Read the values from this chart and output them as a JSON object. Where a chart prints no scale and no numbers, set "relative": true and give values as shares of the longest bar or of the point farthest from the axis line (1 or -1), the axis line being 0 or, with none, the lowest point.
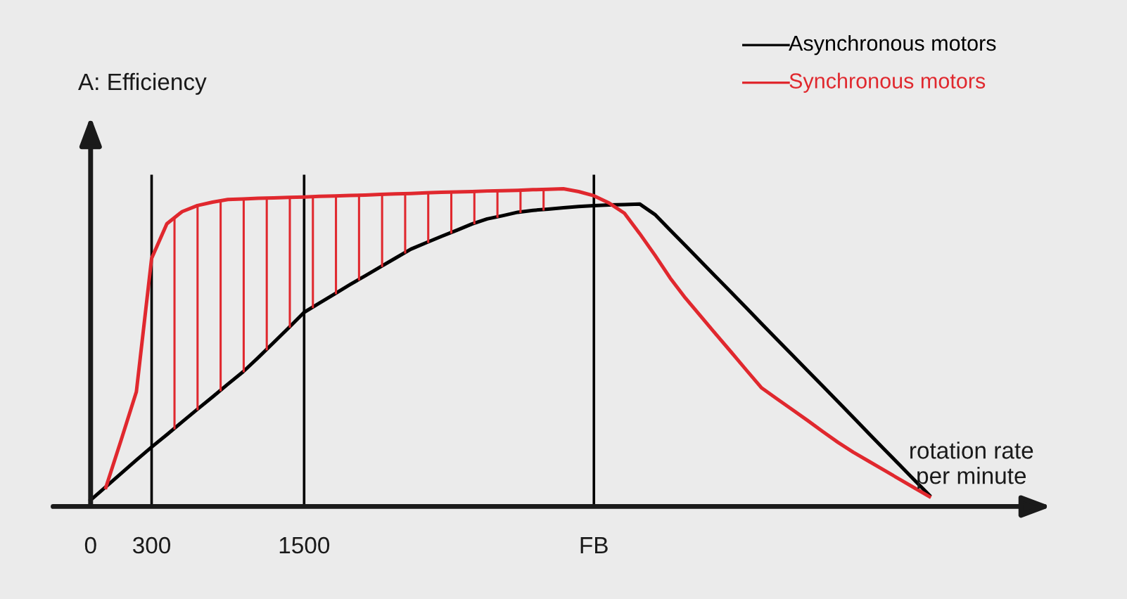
{
  "chart_data": {
    "type": "line",
    "relative": true,
    "ylabel": "A: Efficiency",
    "xlabel": "rotation rate\nper minute",
    "categories": [
      "0",
      null,
      null,
      null,
      "300",
      null,
      null,
      null,
      null,
      null,
      null,
      null,
      null,
      null,
      "1500",
      null,
      null,
      null,
      null,
      null,
      null,
      null,
      null,
      null,
      null,
      null,
      null,
      null,
      null,
      null,
      null,
      null,
      null,
      "FB",
      null,
      null,
      null,
      null,
      null,
      null,
      null,
      null,
      null,
      null,
      null,
      null,
      null,
      null,
      null,
      null,
      null,
      null,
      null,
      null,
      null,
      null
    ],
    "ref_lines": [
      {
        "axis": "x",
        "value": "300",
        "color": "#000000"
      },
      {
        "axis": "x",
        "value": "1500",
        "color": "#000000"
      },
      {
        "axis": "x",
        "value": "FB",
        "color": "#000000"
      }
    ],
    "legend": "top right",
    "series": [
      {
        "name": "Asynchronous motors",
        "color": "#000000",
        "values": [
          0.02,
          0.062,
          0.104,
          0.146,
          0.187,
          0.226,
          0.266,
          0.306,
          0.345,
          0.385,
          0.424,
          0.469,
          0.516,
          0.563,
          0.611,
          0.64,
          0.669,
          0.698,
          0.726,
          0.754,
          0.782,
          0.81,
          0.83,
          0.85,
          0.869,
          0.889,
          0.905,
          0.915,
          0.926,
          0.932,
          0.936,
          0.94,
          0.944,
          0.947,
          0.949,
          0.95,
          0.952,
          0.919,
          0.87,
          0.821,
          0.772,
          0.723,
          0.674,
          0.625,
          0.575,
          0.526,
          0.477,
          0.428,
          0.379,
          0.33,
          0.281,
          0.231,
          0.182,
          0.133,
          0.084,
          0.035
        ]
      },
      {
        "name": "Synchronous motors",
        "color": "#e0282e",
        "values": [
          null,
          0.06,
          0.209,
          0.361,
          0.781,
          0.89,
          0.928,
          0.947,
          0.958,
          0.966,
          0.968,
          0.97,
          0.971,
          0.973,
          0.974,
          0.976,
          0.977,
          0.979,
          0.98,
          0.982,
          0.984,
          0.985,
          0.987,
          0.989,
          0.99,
          0.991,
          0.993,
          0.994,
          0.995,
          0.997,
          0.998,
          1.0,
          0.991,
          0.978,
          0.955,
          0.923,
          0.859,
          0.791,
          0.719,
          0.656,
          0.599,
          0.542,
          0.486,
          0.429,
          0.373,
          0.339,
          0.305,
          0.271,
          0.236,
          0.202,
          0.171,
          0.143,
          0.115,
          0.087,
          0.059,
          0.031
        ]
      }
    ]
  }
}
